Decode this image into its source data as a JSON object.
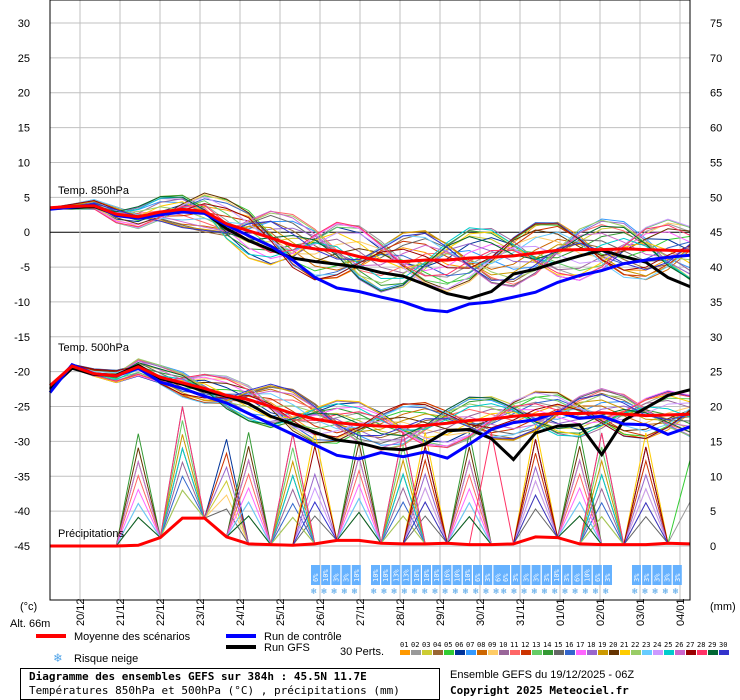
{
  "chart_data": {
    "type": "line",
    "y_left_ticks": [
      "30",
      "25",
      "20",
      "15",
      "10",
      "5",
      "0",
      "-5",
      "-10",
      "-15",
      "-20",
      "-25",
      "-30",
      "-35",
      "-40",
      "-45"
    ],
    "y_right_ticks": [
      "75",
      "70",
      "65",
      "60",
      "55",
      "50",
      "45",
      "40",
      "35",
      "30",
      "25",
      "20",
      "15",
      "10",
      "5",
      "0"
    ],
    "x_ticks": [
      "20/12",
      "21/12",
      "22/12",
      "23/12",
      "24/12",
      "25/12",
      "26/12",
      "27/12",
      "28/12",
      "29/12",
      "30/12",
      "31/12",
      "01/01",
      "02/01",
      "03/01",
      "04/01"
    ],
    "ylim_temp_c": [
      -45,
      30
    ],
    "ylim_precip_mm": [
      0,
      75
    ],
    "left_unit": "(°c)",
    "right_unit": "(mm)",
    "alt_label": "Alt. 66m",
    "grid": true,
    "panels": [
      {
        "name": "Temp. 850hPa",
        "mean": [
          3.5,
          3.7,
          3.8,
          2.6,
          2.2,
          2.9,
          3.3,
          3.0,
          1.2,
          0.2,
          -0.8,
          -1.9,
          -2.4,
          -2.7,
          -3.5,
          -4.1,
          -4.2,
          -4.0,
          -4.0,
          -3.7,
          -3.6,
          -3.4,
          -3.0,
          -2.6,
          -2.5,
          -2.5,
          -2.4,
          -2.5,
          -2.6,
          -2.7
        ],
        "control": [
          3.3,
          3.6,
          3.9,
          2.4,
          2.0,
          2.5,
          2.9,
          2.7,
          1.0,
          -0.5,
          -2.0,
          -4.0,
          -6.5,
          -8.0,
          -8.5,
          -9.3,
          -10.0,
          -11.1,
          -11.4,
          -10.3,
          -10.0,
          -9.3,
          -8.6,
          -7.2,
          -6.2,
          -5.5,
          -4.5,
          -4.0,
          -3.6,
          -3.3
        ],
        "gfs": [
          3.4,
          3.5,
          3.7,
          2.5,
          2.2,
          2.7,
          3.2,
          2.8,
          0.5,
          -1.2,
          -2.5,
          -3.7,
          -4.2,
          -4.6,
          -5.0,
          -5.8,
          -6.3,
          -7.5,
          -8.8,
          -9.5,
          -8.5,
          -6.0,
          -5.3,
          -4.3,
          -3.4,
          -2.6,
          -3.5,
          -4.3,
          -6.5,
          -7.8
        ]
      },
      {
        "name": "Temp. 500hPa",
        "mean": [
          -22.0,
          -19.2,
          -20.3,
          -20.6,
          -19.3,
          -20.8,
          -21.6,
          -22.4,
          -23.4,
          -24.0,
          -25.0,
          -26.0,
          -26.8,
          -27.3,
          -27.6,
          -27.8,
          -27.9,
          -27.7,
          -27.4,
          -27.0,
          -26.8,
          -26.4,
          -26.2,
          -26.0,
          -26.0,
          -25.9,
          -26.1,
          -26.3,
          -26.2,
          -26.1
        ],
        "control": [
          -23.0,
          -19.0,
          -20.3,
          -20.6,
          -19.5,
          -21.5,
          -22.4,
          -23.5,
          -24.5,
          -26.0,
          -27.5,
          -29.0,
          -30.5,
          -32.0,
          -32.5,
          -31.6,
          -32.2,
          -31.5,
          -32.4,
          -30.4,
          -28.3,
          -27.3,
          -26.9,
          -25.8,
          -26.7,
          -26.4,
          -27.5,
          -27.6,
          -29.0,
          -27.9
        ],
        "gfs": [
          -22.5,
          -19.5,
          -20.4,
          -20.5,
          -19.1,
          -21.0,
          -21.8,
          -22.8,
          -23.5,
          -24.6,
          -26.4,
          -27.5,
          -28.7,
          -29.8,
          -30.2,
          -31.0,
          -31.2,
          -30.4,
          -28.5,
          -28.3,
          -29.6,
          -32.6,
          -28.8,
          -27.8,
          -27.6,
          -31.9,
          -27.0,
          -25.2,
          -23.4,
          -22.6
        ]
      },
      {
        "name": "Précipitations",
        "unit": "mm",
        "mean_mm": [
          0.0,
          0.0,
          0.0,
          0.0,
          0.1,
          1.2,
          4.0,
          4.0,
          1.3,
          0.3,
          0.2,
          0.1,
          0.3,
          0.8,
          0.8,
          0.4,
          0.3,
          0.3,
          0.4,
          0.2,
          0.2,
          0.3,
          1.3,
          1.2,
          0.3,
          0.2,
          0.2,
          0.2,
          0.4,
          0.3
        ]
      }
    ],
    "snow_risk_groups": [
      {
        "labels": [
          "6%",
          "10%",
          "3%",
          "3%",
          "10%"
        ]
      },
      {
        "labels": [
          "10%",
          "10%",
          "13%",
          "13%",
          "10%",
          "10%",
          "10%",
          "16%",
          "10%",
          "10%",
          "6%",
          "3%",
          "6%"
        ]
      },
      {
        "labels": [
          "6%",
          "3%",
          "3%",
          "3%",
          "3%",
          "10%",
          "3%",
          "6%",
          "10%",
          "6%",
          "3%"
        ]
      },
      {
        "labels": [
          "3%",
          "3%",
          "3%",
          "3%",
          "3%"
        ]
      }
    ],
    "legend": {
      "mean": "Moyenne des scénarios",
      "control": "Run de contrôle",
      "gfs": "Run GFS",
      "snow": "Risque neige",
      "perts": "30 Perts."
    },
    "series_colors": {
      "mean": "#ff0000",
      "control": "#0000ff",
      "gfs": "#000000"
    },
    "pert_labels": [
      "01",
      "02",
      "03",
      "04",
      "05",
      "06",
      "07",
      "08",
      "09",
      "10",
      "11",
      "12",
      "13",
      "14",
      "15",
      "16",
      "17",
      "18",
      "19",
      "20",
      "21",
      "22",
      "23",
      "24",
      "25",
      "26",
      "27",
      "28",
      "29",
      "30"
    ],
    "pert_colors": [
      "#ff9900",
      "#999999",
      "#cccc33",
      "#996633",
      "#33cc33",
      "#003399",
      "#3399ff",
      "#cc6600",
      "#ffcc66",
      "#996699",
      "#ff6666",
      "#cc3300",
      "#66cc66",
      "#339933",
      "#666666",
      "#3366cc",
      "#ff66ff",
      "#9966cc",
      "#cc9900",
      "#663300",
      "#ffcc00",
      "#99cc66",
      "#66ccff",
      "#cc99ff",
      "#00cccc",
      "#cc66cc",
      "#990000",
      "#ff3366",
      "#006633",
      "#3333cc"
    ]
  },
  "footer": {
    "title": "Diagramme des ensembles GEFS sur 384h : 45.5N 11.7E",
    "subtitle": "Températures 850hPa et 500hPa (°C) , précipitations (mm)",
    "run_info": "Ensemble GEFS du 19/12/2025 - 06Z",
    "copyright": "Copyright 2025 Meteociel.fr"
  }
}
